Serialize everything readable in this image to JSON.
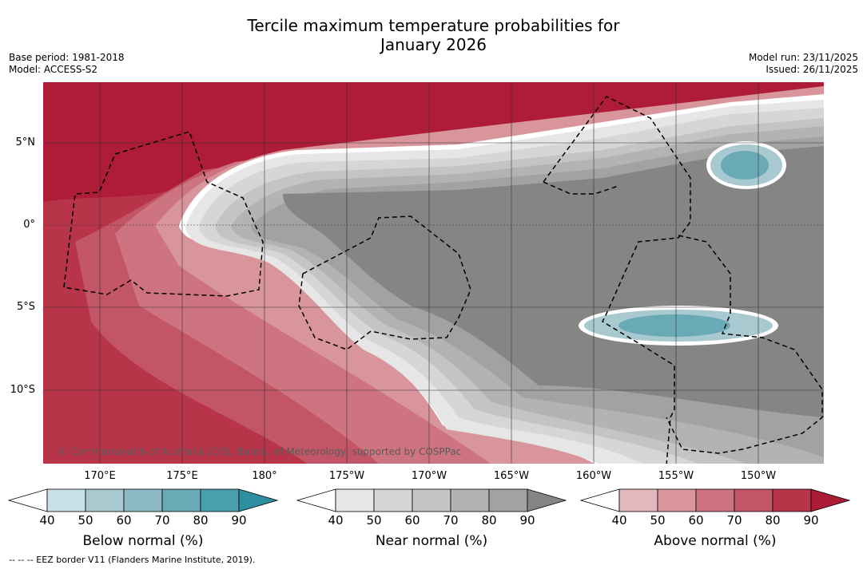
{
  "title_line1": "Tercile maximum temperature probabilities for",
  "title_line2": "January 2026",
  "base_period": "Base period: 1981-2018",
  "model": "Model: ACCESS-S2",
  "model_run": "Model run: 23/11/2025",
  "issued": "Issued: 26/11/2025",
  "credit": "© Commonwealth of Australia 2025, Bureau of Meteorology, supported by COSPPac",
  "footer": "-- -- -- EEZ border V11 (Flanders Marine Institute, 2019).",
  "lat_labels": [
    "5°N",
    "0°",
    "5°S",
    "10°S"
  ],
  "lon_labels": [
    "170°E",
    "175°E",
    "180°",
    "175°W",
    "170°W",
    "165°W",
    "160°W",
    "155°W",
    "150°W"
  ],
  "colorbars": [
    {
      "title": "Below normal (%)",
      "ticks": [
        "40",
        "50",
        "60",
        "70",
        "80",
        "90"
      ],
      "colors": [
        "#ffffff",
        "#c8e0e6",
        "#a8c9cf",
        "#8bb8c3",
        "#6aaab6",
        "#4a9fae",
        "#2e8fa0"
      ]
    },
    {
      "title": "Near normal (%)",
      "ticks": [
        "40",
        "50",
        "60",
        "70",
        "80",
        "90"
      ],
      "colors": [
        "#ffffff",
        "#e6e6e6",
        "#d6d6d6",
        "#c4c4c4",
        "#b3b3b3",
        "#a2a2a2",
        "#858585"
      ]
    },
    {
      "title": "Above normal (%)",
      "ticks": [
        "40",
        "50",
        "60",
        "70",
        "80",
        "90"
      ],
      "colors": [
        "#ffffff",
        "#e2b8bd",
        "#d8959c",
        "#cd7480",
        "#c25566",
        "#b83449",
        "#ac1c37"
      ]
    }
  ]
}
